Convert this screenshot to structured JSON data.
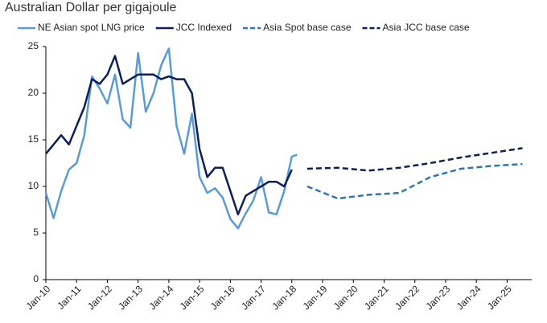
{
  "chart_data": {
    "type": "line",
    "title": "Australian Dollar per gigajoule",
    "xlim": [
      2010,
      2025.8
    ],
    "xticks": [
      {
        "value": 2010,
        "label": "Jan-10"
      },
      {
        "value": 2011,
        "label": "Jan-11"
      },
      {
        "value": 2012,
        "label": "Jan-12"
      },
      {
        "value": 2013,
        "label": "Jan-13"
      },
      {
        "value": 2014,
        "label": "Jan-14"
      },
      {
        "value": 2015,
        "label": "Jan-15"
      },
      {
        "value": 2016,
        "label": "Jan-16"
      },
      {
        "value": 2017,
        "label": "Jan-17"
      },
      {
        "value": 2018,
        "label": "Jan-18"
      },
      {
        "value": 2019,
        "label": "Jan-19"
      },
      {
        "value": 2020,
        "label": "Jan-20"
      },
      {
        "value": 2021,
        "label": "Jan-21"
      },
      {
        "value": 2022,
        "label": "Jan-22"
      },
      {
        "value": 2023,
        "label": "Jan-23"
      },
      {
        "value": 2024,
        "label": "Jan-24"
      },
      {
        "value": 2025,
        "label": "Jan-25"
      }
    ],
    "ylim": [
      0,
      25
    ],
    "yticks": [
      0,
      5,
      10,
      15,
      20,
      25
    ],
    "grid": false,
    "series": [
      {
        "name": "NE Asian spot LNG price",
        "color": "#5b9bd5",
        "dash": false,
        "x": [
          2010,
          2010.25,
          2010.5,
          2010.75,
          2011,
          2011.25,
          2011.5,
          2011.75,
          2012,
          2012.25,
          2012.5,
          2012.75,
          2013,
          2013.25,
          2013.5,
          2013.75,
          2014,
          2014.25,
          2014.5,
          2014.75,
          2015,
          2015.25,
          2015.5,
          2015.75,
          2016,
          2016.25,
          2016.5,
          2016.75,
          2017,
          2017.25,
          2017.5,
          2017.75,
          2018,
          2018.17
        ],
        "values": [
          9.3,
          6.6,
          9.5,
          11.8,
          12.5,
          15.5,
          21.8,
          20.5,
          18.9,
          22.0,
          17.2,
          16.3,
          24.3,
          18.0,
          20.0,
          23.0,
          24.8,
          16.5,
          13.5,
          17.8,
          11.0,
          9.3,
          9.8,
          8.8,
          6.5,
          5.5,
          7.1,
          8.5,
          11.0,
          7.2,
          7.0,
          9.5,
          13.2,
          13.4
        ]
      },
      {
        "name": "JCC Indexed",
        "color": "#0c1f5b",
        "dash": false,
        "x": [
          2010,
          2010.25,
          2010.5,
          2010.75,
          2011,
          2011.25,
          2011.5,
          2011.75,
          2012,
          2012.25,
          2012.5,
          2012.75,
          2013,
          2013.25,
          2013.5,
          2013.75,
          2014,
          2014.25,
          2014.5,
          2014.75,
          2015,
          2015.25,
          2015.5,
          2015.75,
          2016,
          2016.25,
          2016.5,
          2016.75,
          2017,
          2017.25,
          2017.5,
          2017.75,
          2018
        ],
        "values": [
          13.5,
          14.5,
          15.5,
          14.5,
          16.5,
          18.5,
          21.5,
          21.0,
          22.0,
          24.0,
          21.0,
          21.5,
          22.0,
          22.0,
          22.0,
          21.5,
          21.8,
          21.5,
          21.5,
          20.0,
          14.0,
          11.0,
          12.0,
          12.0,
          9.5,
          7.0,
          9.0,
          9.5,
          10.0,
          10.5,
          10.5,
          10.0,
          11.8
        ]
      },
      {
        "name": "Asia Spot base case",
        "color": "#2e75b6",
        "dash": true,
        "x": [
          2018.5,
          2019.5,
          2020.5,
          2021.5,
          2022.5,
          2023.5,
          2024.5,
          2025.5
        ],
        "values": [
          10.0,
          8.7,
          9.1,
          9.3,
          11.0,
          11.9,
          12.2,
          12.4
        ]
      },
      {
        "name": "Asia JCC base case",
        "color": "#0c1f5b",
        "dash": true,
        "x": [
          2018.5,
          2019.5,
          2020.5,
          2021.5,
          2022.5,
          2023.5,
          2024.5,
          2025.5
        ],
        "values": [
          11.9,
          12.0,
          11.7,
          12.0,
          12.5,
          13.1,
          13.6,
          14.1
        ]
      }
    ]
  }
}
